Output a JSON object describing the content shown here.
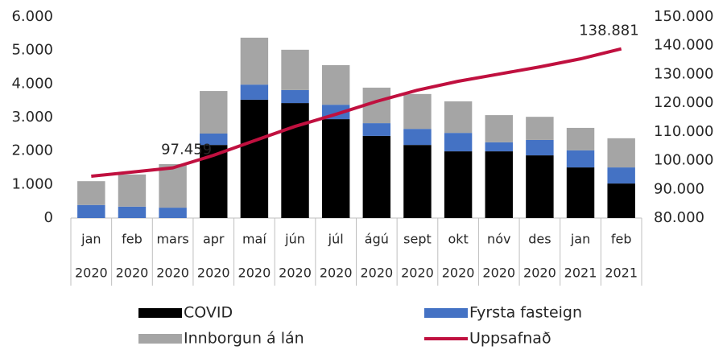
{
  "chart_data": {
    "type": "bar_line",
    "categories": [
      "jan",
      "feb",
      "mars",
      "apr",
      "maí",
      "jún",
      "júl",
      "ágú",
      "sept",
      "okt",
      "nóv",
      "des",
      "jan",
      "feb"
    ],
    "years": [
      "2020",
      "2020",
      "2020",
      "2020",
      "2020",
      "2020",
      "2020",
      "2020",
      "2020",
      "2020",
      "2020",
      "2020",
      "2021",
      "2021"
    ],
    "series": [
      {
        "name": "COVID",
        "color": "#000000",
        "values": [
          0,
          0,
          0,
          2180,
          3530,
          3430,
          2950,
          2450,
          2180,
          1990,
          1990,
          1870,
          1510,
          1030
        ]
      },
      {
        "name": "Fyrsta fasteign",
        "color": "#4472c4",
        "values": [
          390,
          340,
          310,
          340,
          450,
          390,
          430,
          380,
          480,
          550,
          270,
          460,
          510,
          480
        ]
      },
      {
        "name": "Innborgun á lán",
        "color": "#a5a5a5",
        "values": [
          710,
          960,
          1300,
          1270,
          1400,
          1200,
          1180,
          1060,
          1040,
          940,
          810,
          690,
          670,
          870
        ]
      },
      {
        "name": "Uppsafnað",
        "color": "#c0103f",
        "axis": "y2",
        "type": "line",
        "values": [
          94560,
          96000,
          97459,
          101840,
          106900,
          111900,
          116100,
          120600,
          124500,
          127600,
          130100,
          132600,
          135400,
          138881
        ],
        "value_labels": [
          null,
          null,
          "97.459",
          null,
          null,
          null,
          null,
          null,
          null,
          null,
          null,
          null,
          null,
          "138.881"
        ]
      }
    ],
    "ylim": [
      0,
      6000
    ],
    "yticks": [
      0,
      {
        "value": 1000,
        "label": "1.000"
      },
      {
        "value": 2000,
        "label": "2.000"
      },
      {
        "value": 3000,
        "label": "3.000"
      },
      {
        "value": 4000,
        "label": "4.000"
      },
      {
        "value": 5000,
        "label": "5.000"
      },
      {
        "value": 6000,
        "label": "6.000"
      }
    ],
    "y2lim": [
      80000,
      150000
    ],
    "y2ticks": [
      {
        "value": 80000,
        "label": "80.000"
      },
      {
        "value": 90000,
        "label": "90.000"
      },
      {
        "value": 100000,
        "label": "100.000"
      },
      {
        "value": 110000,
        "label": "110.000"
      },
      {
        "value": 120000,
        "label": "120.000"
      },
      {
        "value": 130000,
        "label": "130.000"
      },
      {
        "value": 140000,
        "label": "140.000"
      },
      {
        "value": 150000,
        "label": "150.000"
      }
    ],
    "legend": "bottom"
  }
}
